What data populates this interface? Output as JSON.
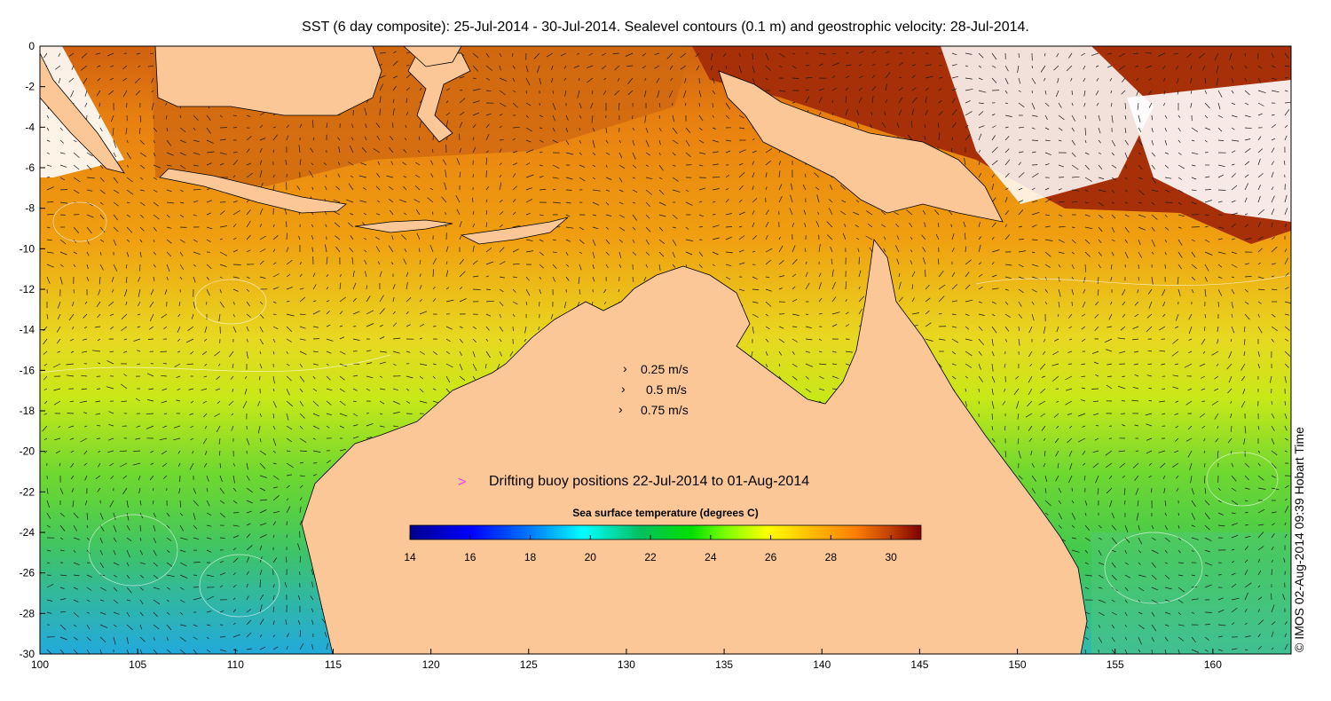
{
  "title": "SST (6 day composite): 25-Jul-2014 - 30-Jul-2014. Sealevel contours (0.1 m) and geostrophic velocity: 28-Jul-2014.",
  "credit": "© IMOS 02-Aug-2014 09:39 Hobart Time",
  "axes": {
    "x_ticks": [
      "100",
      "105",
      "110",
      "115",
      "120",
      "125",
      "130",
      "135",
      "140",
      "145",
      "150",
      "155",
      "160"
    ],
    "y_ticks": [
      "0",
      "-2",
      "-4",
      "-6",
      "-8",
      "-10",
      "-12",
      "-14",
      "-16",
      "-18",
      "-20",
      "-22",
      "-24",
      "-26",
      "-28",
      "-30"
    ],
    "lon_range": [
      100,
      164
    ],
    "lat_range": [
      -30,
      0
    ]
  },
  "velocity_legend": {
    "items": [
      {
        "label": "0.25 m/s",
        "speed": 0.25
      },
      {
        "label": "0.5 m/s",
        "speed": 0.5
      },
      {
        "label": "0.75 m/s",
        "speed": 0.75
      }
    ]
  },
  "buoy_legend": {
    "label": "Drifting buoy positions 22-Jul-2014 to 01-Aug-2014",
    "color": "#ff33ff"
  },
  "colorbar": {
    "title": "Sea surface temperature (degrees C)",
    "min": 14,
    "max": 31,
    "ticks": [
      "14",
      "16",
      "18",
      "20",
      "22",
      "24",
      "26",
      "28",
      "30"
    ],
    "stops": [
      "#00008f",
      "#0000ff",
      "#0080ff",
      "#00ffff",
      "#00c060",
      "#00e000",
      "#80ff00",
      "#ffff00",
      "#ffb000",
      "#ff8000",
      "#c04000",
      "#800000"
    ]
  },
  "colors": {
    "land": "#fcc797",
    "sea_warm": "#f09010",
    "sea_mid": "#e8e020",
    "sea_cool": "#40d040",
    "sea_cold": "#30c0d0",
    "hot": "#a03008"
  }
}
